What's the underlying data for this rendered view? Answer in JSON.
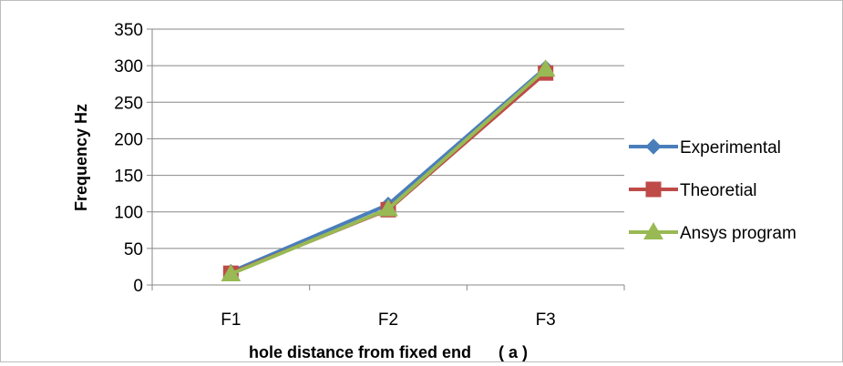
{
  "chart_data": {
    "type": "line",
    "categories": [
      "F1",
      "F2",
      "F3"
    ],
    "series": [
      {
        "name": "Experimental",
        "values": [
          18,
          110,
          297
        ],
        "color": "#4a7ebb",
        "marker": "diamond"
      },
      {
        "name": "Theoretial",
        "values": [
          16,
          103,
          290
        ],
        "color": "#be4b48",
        "marker": "square"
      },
      {
        "name": "Ansys program",
        "values": [
          15,
          104,
          295
        ],
        "color": "#98b954",
        "marker": "triangle"
      }
    ],
    "title": "",
    "xlabel": "hole distance from fixed end      ( a )",
    "ylabel": "Frequency Hz",
    "ylim": [
      0,
      350
    ],
    "yticks": [
      0,
      50,
      100,
      150,
      200,
      250,
      300,
      350
    ],
    "grid": true,
    "legend_position": "right"
  }
}
